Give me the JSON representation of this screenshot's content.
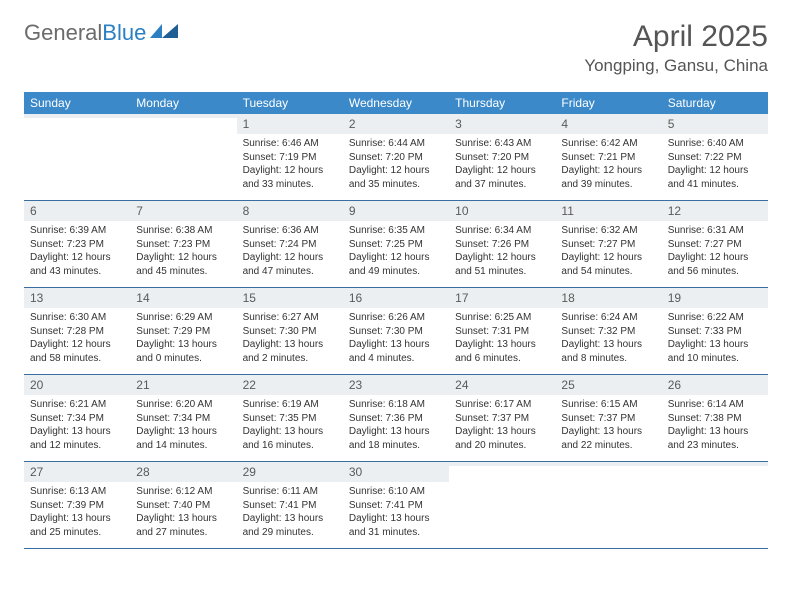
{
  "logo": {
    "text1": "General",
    "text2": "Blue"
  },
  "title": "April 2025",
  "location": "Yongping, Gansu, China",
  "colors": {
    "header_bg": "#3b89c9",
    "header_text": "#ffffff",
    "daynum_bg": "#eceff1",
    "border": "#3b6ea0",
    "logo_gray": "#6b6b6b",
    "logo_blue": "#2b7fc3"
  },
  "weekdays": [
    "Sunday",
    "Monday",
    "Tuesday",
    "Wednesday",
    "Thursday",
    "Friday",
    "Saturday"
  ],
  "weeks": [
    [
      {
        "n": "",
        "sr": "",
        "ss": "",
        "dl": ""
      },
      {
        "n": "",
        "sr": "",
        "ss": "",
        "dl": ""
      },
      {
        "n": "1",
        "sr": "Sunrise: 6:46 AM",
        "ss": "Sunset: 7:19 PM",
        "dl": "Daylight: 12 hours and 33 minutes."
      },
      {
        "n": "2",
        "sr": "Sunrise: 6:44 AM",
        "ss": "Sunset: 7:20 PM",
        "dl": "Daylight: 12 hours and 35 minutes."
      },
      {
        "n": "3",
        "sr": "Sunrise: 6:43 AM",
        "ss": "Sunset: 7:20 PM",
        "dl": "Daylight: 12 hours and 37 minutes."
      },
      {
        "n": "4",
        "sr": "Sunrise: 6:42 AM",
        "ss": "Sunset: 7:21 PM",
        "dl": "Daylight: 12 hours and 39 minutes."
      },
      {
        "n": "5",
        "sr": "Sunrise: 6:40 AM",
        "ss": "Sunset: 7:22 PM",
        "dl": "Daylight: 12 hours and 41 minutes."
      }
    ],
    [
      {
        "n": "6",
        "sr": "Sunrise: 6:39 AM",
        "ss": "Sunset: 7:23 PM",
        "dl": "Daylight: 12 hours and 43 minutes."
      },
      {
        "n": "7",
        "sr": "Sunrise: 6:38 AM",
        "ss": "Sunset: 7:23 PM",
        "dl": "Daylight: 12 hours and 45 minutes."
      },
      {
        "n": "8",
        "sr": "Sunrise: 6:36 AM",
        "ss": "Sunset: 7:24 PM",
        "dl": "Daylight: 12 hours and 47 minutes."
      },
      {
        "n": "9",
        "sr": "Sunrise: 6:35 AM",
        "ss": "Sunset: 7:25 PM",
        "dl": "Daylight: 12 hours and 49 minutes."
      },
      {
        "n": "10",
        "sr": "Sunrise: 6:34 AM",
        "ss": "Sunset: 7:26 PM",
        "dl": "Daylight: 12 hours and 51 minutes."
      },
      {
        "n": "11",
        "sr": "Sunrise: 6:32 AM",
        "ss": "Sunset: 7:27 PM",
        "dl": "Daylight: 12 hours and 54 minutes."
      },
      {
        "n": "12",
        "sr": "Sunrise: 6:31 AM",
        "ss": "Sunset: 7:27 PM",
        "dl": "Daylight: 12 hours and 56 minutes."
      }
    ],
    [
      {
        "n": "13",
        "sr": "Sunrise: 6:30 AM",
        "ss": "Sunset: 7:28 PM",
        "dl": "Daylight: 12 hours and 58 minutes."
      },
      {
        "n": "14",
        "sr": "Sunrise: 6:29 AM",
        "ss": "Sunset: 7:29 PM",
        "dl": "Daylight: 13 hours and 0 minutes."
      },
      {
        "n": "15",
        "sr": "Sunrise: 6:27 AM",
        "ss": "Sunset: 7:30 PM",
        "dl": "Daylight: 13 hours and 2 minutes."
      },
      {
        "n": "16",
        "sr": "Sunrise: 6:26 AM",
        "ss": "Sunset: 7:30 PM",
        "dl": "Daylight: 13 hours and 4 minutes."
      },
      {
        "n": "17",
        "sr": "Sunrise: 6:25 AM",
        "ss": "Sunset: 7:31 PM",
        "dl": "Daylight: 13 hours and 6 minutes."
      },
      {
        "n": "18",
        "sr": "Sunrise: 6:24 AM",
        "ss": "Sunset: 7:32 PM",
        "dl": "Daylight: 13 hours and 8 minutes."
      },
      {
        "n": "19",
        "sr": "Sunrise: 6:22 AM",
        "ss": "Sunset: 7:33 PM",
        "dl": "Daylight: 13 hours and 10 minutes."
      }
    ],
    [
      {
        "n": "20",
        "sr": "Sunrise: 6:21 AM",
        "ss": "Sunset: 7:34 PM",
        "dl": "Daylight: 13 hours and 12 minutes."
      },
      {
        "n": "21",
        "sr": "Sunrise: 6:20 AM",
        "ss": "Sunset: 7:34 PM",
        "dl": "Daylight: 13 hours and 14 minutes."
      },
      {
        "n": "22",
        "sr": "Sunrise: 6:19 AM",
        "ss": "Sunset: 7:35 PM",
        "dl": "Daylight: 13 hours and 16 minutes."
      },
      {
        "n": "23",
        "sr": "Sunrise: 6:18 AM",
        "ss": "Sunset: 7:36 PM",
        "dl": "Daylight: 13 hours and 18 minutes."
      },
      {
        "n": "24",
        "sr": "Sunrise: 6:17 AM",
        "ss": "Sunset: 7:37 PM",
        "dl": "Daylight: 13 hours and 20 minutes."
      },
      {
        "n": "25",
        "sr": "Sunrise: 6:15 AM",
        "ss": "Sunset: 7:37 PM",
        "dl": "Daylight: 13 hours and 22 minutes."
      },
      {
        "n": "26",
        "sr": "Sunrise: 6:14 AM",
        "ss": "Sunset: 7:38 PM",
        "dl": "Daylight: 13 hours and 23 minutes."
      }
    ],
    [
      {
        "n": "27",
        "sr": "Sunrise: 6:13 AM",
        "ss": "Sunset: 7:39 PM",
        "dl": "Daylight: 13 hours and 25 minutes."
      },
      {
        "n": "28",
        "sr": "Sunrise: 6:12 AM",
        "ss": "Sunset: 7:40 PM",
        "dl": "Daylight: 13 hours and 27 minutes."
      },
      {
        "n": "29",
        "sr": "Sunrise: 6:11 AM",
        "ss": "Sunset: 7:41 PM",
        "dl": "Daylight: 13 hours and 29 minutes."
      },
      {
        "n": "30",
        "sr": "Sunrise: 6:10 AM",
        "ss": "Sunset: 7:41 PM",
        "dl": "Daylight: 13 hours and 31 minutes."
      },
      {
        "n": "",
        "sr": "",
        "ss": "",
        "dl": ""
      },
      {
        "n": "",
        "sr": "",
        "ss": "",
        "dl": ""
      },
      {
        "n": "",
        "sr": "",
        "ss": "",
        "dl": ""
      }
    ]
  ]
}
